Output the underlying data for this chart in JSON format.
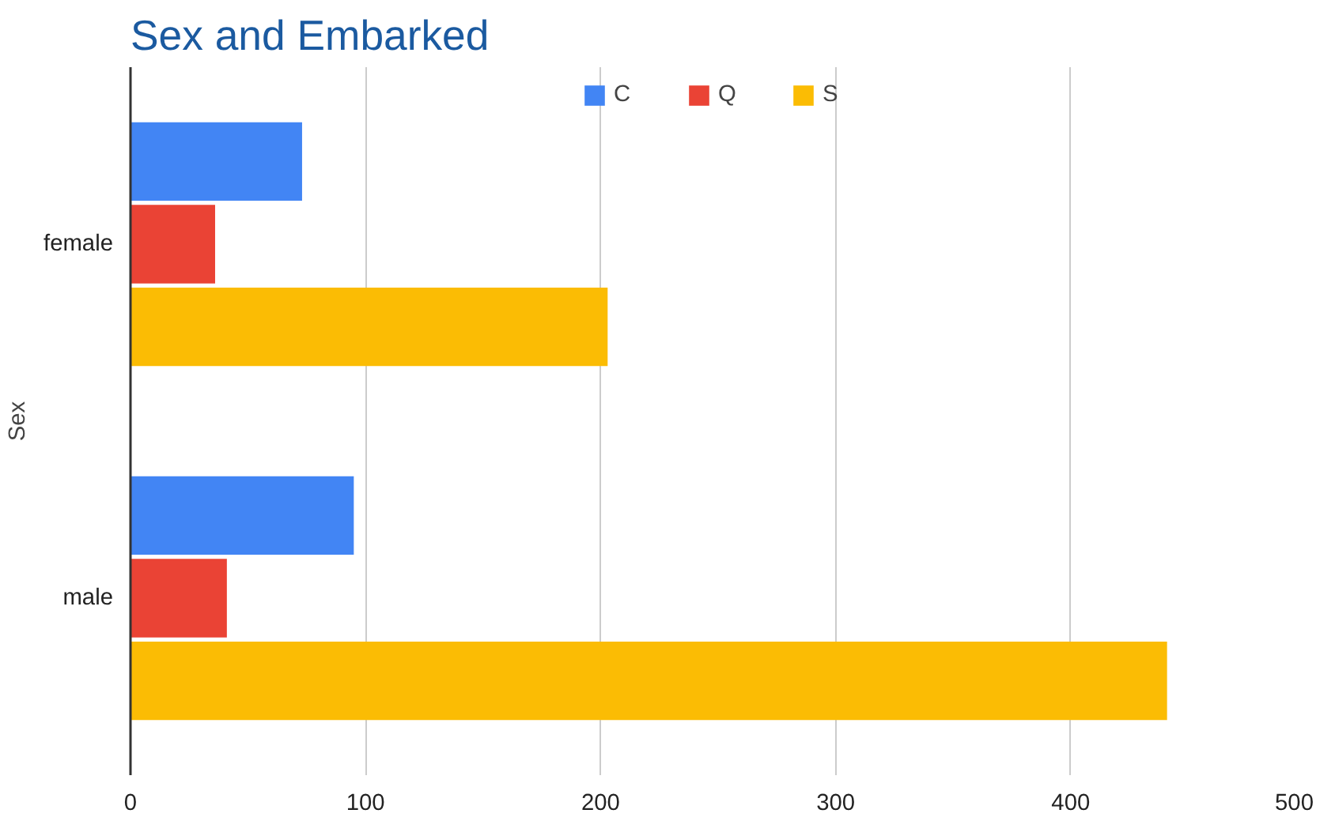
{
  "chart_data": {
    "type": "bar",
    "orientation": "horizontal",
    "title": "Sex and Embarked",
    "ylabel": "Sex",
    "categories": [
      "female",
      "male"
    ],
    "series": [
      {
        "name": "C",
        "color": "#4285f4",
        "values": [
          73,
          95
        ]
      },
      {
        "name": "Q",
        "color": "#ea4335",
        "values": [
          36,
          41
        ]
      },
      {
        "name": "S",
        "color": "#fbbc04",
        "values": [
          203,
          441
        ]
      }
    ],
    "xlim": [
      0,
      500
    ],
    "xticks": [
      0,
      100,
      200,
      300,
      400,
      500
    ],
    "grid": "x",
    "legend": "top"
  }
}
